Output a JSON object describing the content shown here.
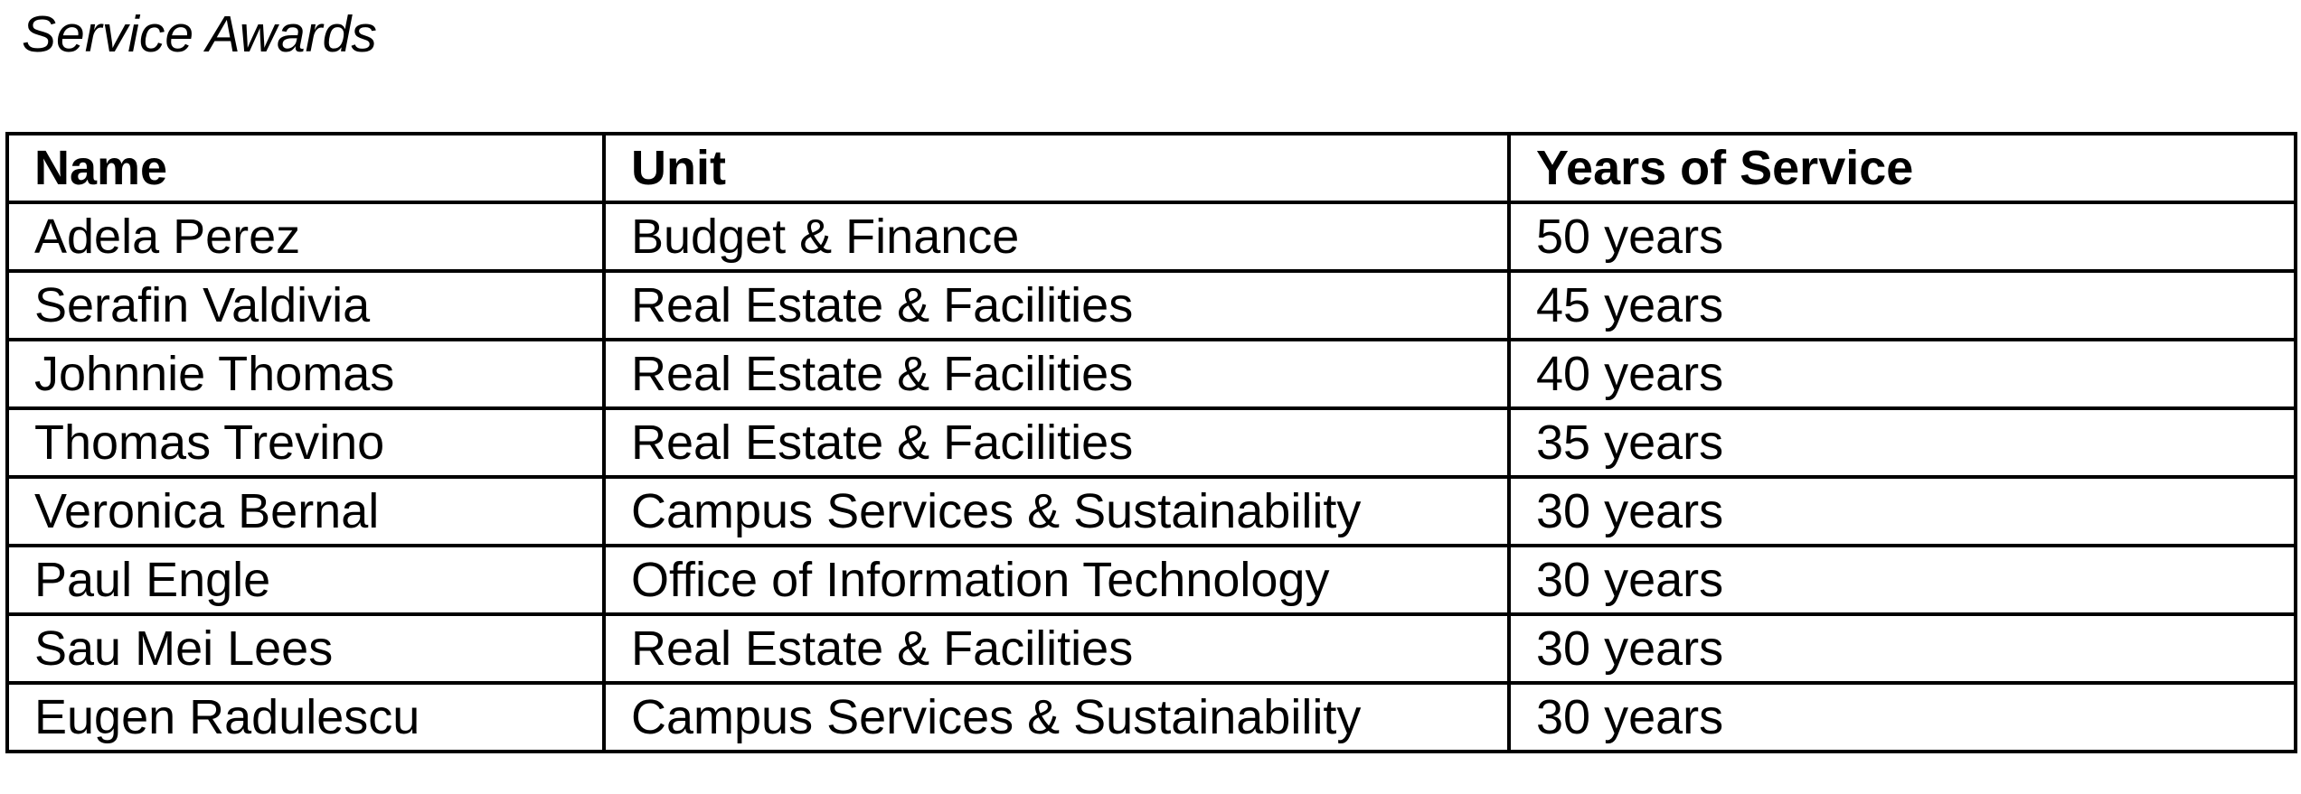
{
  "document": {
    "caption": "Service Awards"
  },
  "table": {
    "headers": {
      "name": "Name",
      "unit": "Unit",
      "years": "Years of Service"
    },
    "rows": [
      {
        "name": "Adela Perez",
        "unit": "Budget & Finance",
        "years": "50 years"
      },
      {
        "name": "Serafin Valdivia",
        "unit": "Real Estate & Facilities",
        "years": "45 years"
      },
      {
        "name": "Johnnie Thomas",
        "unit": "Real Estate & Facilities",
        "years": "40 years"
      },
      {
        "name": "Thomas Trevino",
        "unit": "Real Estate & Facilities",
        "years": "35 years"
      },
      {
        "name": "Veronica Bernal",
        "unit": "Campus Services & Sustainability",
        "years": "30 years"
      },
      {
        "name": "Paul Engle",
        "unit": "Office of Information Technology",
        "years": "30 years"
      },
      {
        "name": "Sau Mei Lees",
        "unit": "Real Estate & Facilities",
        "years": "30 years"
      },
      {
        "name": "Eugen Radulescu",
        "unit": "Campus Services & Sustainability",
        "years": "30 years"
      }
    ]
  }
}
